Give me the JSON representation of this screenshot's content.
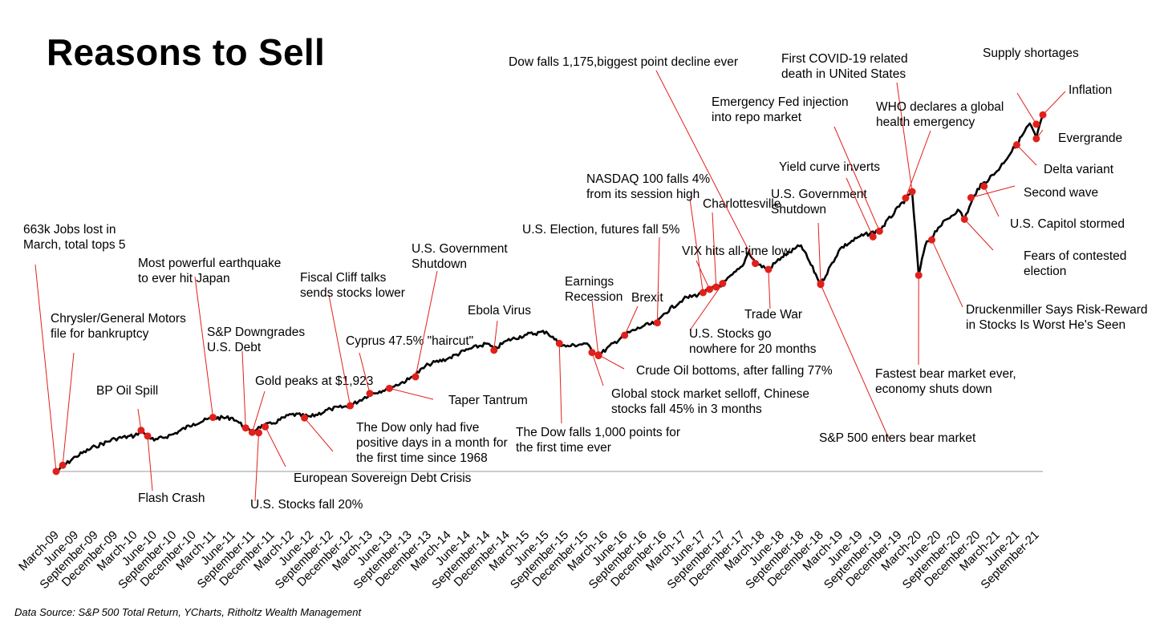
{
  "title": "Reasons to Sell",
  "source": "Data Source: S&P 500 Total Return, YCharts, Ritholtz Wealth Management",
  "colors": {
    "line": "#000000",
    "marker": "#e0201b",
    "leader": "#e0201b",
    "baseline": "#9a9a9a"
  },
  "chart_data": {
    "type": "line",
    "title": "Reasons to Sell",
    "xlabel": "",
    "ylabel": "",
    "grid": false,
    "x_ticks": [
      "March-09",
      "June-09",
      "September-09",
      "December-09",
      "March-10",
      "June-10",
      "September-10",
      "December-10",
      "March-11",
      "June-11",
      "September-11",
      "December-11",
      "March-12",
      "June-12",
      "September-12",
      "December-12",
      "March-13",
      "June-13",
      "September-13",
      "December-13",
      "March-14",
      "June-14",
      "September-14",
      "December-14",
      "March-15",
      "June-15",
      "September-15",
      "December-15",
      "March-16",
      "June-16",
      "September-16",
      "December-16",
      "March-17",
      "June-17",
      "September-17",
      "December-17",
      "March-18",
      "June-18",
      "September-18",
      "December-18",
      "March-19",
      "June-19",
      "September-19",
      "December-19",
      "March-20",
      "June-20",
      "September-20",
      "December-20",
      "March-21",
      "June-21",
      "September-21"
    ],
    "series": [
      {
        "name": "",
        "x": [
          "2009-03",
          "2009-06",
          "2009-09",
          "2009-12",
          "2010-03",
          "2010-04",
          "2010-05",
          "2010-06",
          "2010-09",
          "2010-12",
          "2011-03",
          "2011-06",
          "2011-07",
          "2011-08",
          "2011-09",
          "2011-10",
          "2011-12",
          "2012-03",
          "2012-06",
          "2012-09",
          "2012-12",
          "2013-03",
          "2013-06",
          "2013-09",
          "2013-12",
          "2014-03",
          "2014-06",
          "2014-09",
          "2014-10",
          "2014-12",
          "2015-03",
          "2015-06",
          "2015-08",
          "2015-09",
          "2015-12",
          "2016-02",
          "2016-06",
          "2016-09",
          "2016-11",
          "2016-12",
          "2017-03",
          "2017-06",
          "2017-09",
          "2017-12",
          "2018-01",
          "2018-02",
          "2018-04",
          "2018-06",
          "2018-09",
          "2018-12",
          "2019-03",
          "2019-06",
          "2019-09",
          "2019-12",
          "2020-02",
          "2020-03",
          "2020-04",
          "2020-06",
          "2020-09",
          "2020-10",
          "2020-12",
          "2021-03",
          "2021-06",
          "2021-08",
          "2021-09",
          "2021-10"
        ],
        "y": [
          0,
          0.25,
          0.42,
          0.55,
          0.6,
          0.68,
          0.6,
          0.52,
          0.63,
          0.8,
          0.9,
          0.9,
          0.82,
          0.72,
          0.64,
          0.75,
          0.8,
          0.96,
          0.92,
          1.05,
          1.1,
          1.3,
          1.4,
          1.55,
          1.8,
          1.9,
          2.05,
          2.15,
          2.05,
          2.2,
          2.3,
          2.35,
          2.15,
          2.1,
          2.15,
          1.95,
          2.3,
          2.45,
          2.5,
          2.65,
          2.9,
          3.0,
          3.15,
          3.45,
          3.7,
          3.5,
          3.4,
          3.6,
          3.8,
          3.15,
          3.75,
          3.95,
          4.05,
          4.45,
          4.7,
          3.3,
          3.8,
          4.1,
          4.4,
          4.25,
          4.75,
          5.05,
          5.5,
          5.85,
          5.6,
          6.0
        ]
      }
    ],
    "ylim": [
      0,
      6.2
    ],
    "annotations": [
      {
        "text": "663k Jobs lost in\nMarch, total tops 5",
        "x": "2009-03",
        "y": 0
      },
      {
        "text": "Chrysler/General Motors\nfile for bankruptcy",
        "x": "2009-04",
        "y": 0.1
      },
      {
        "text": "BP Oil Spill",
        "x": "2010-04",
        "y": 0.68
      },
      {
        "text": "Flash Crash",
        "x": "2010-05",
        "y": 0.6
      },
      {
        "text": "Most powerful earthquake\nto ever hit Japan",
        "x": "2011-03",
        "y": 0.9
      },
      {
        "text": "S&P Downgrades\nU.S. Debt",
        "x": "2011-08",
        "y": 0.72
      },
      {
        "text": "U.S. Stocks fall 20%",
        "x": "2011-10",
        "y": 0.64
      },
      {
        "text": "European Sovereign Debt Crisis",
        "x": "2011-11",
        "y": 0.74
      },
      {
        "text": "Gold peaks at $1,923",
        "x": "2011-09",
        "y": 0.66
      },
      {
        "text": "Fiscal Cliff talks\nsends stocks lower",
        "x": "2012-12",
        "y": 1.1
      },
      {
        "text": "The Dow only had five\npositive days in a month for\nthe first time since 1968",
        "x": "2012-05",
        "y": 0.9
      },
      {
        "text": "Cyprus 47.5% \"haircut\"",
        "x": "2013-03",
        "y": 1.3
      },
      {
        "text": "Taper Tantrum",
        "x": "2013-06",
        "y": 1.4
      },
      {
        "text": "U.S. Government\nShutdown",
        "x": "2013-10",
        "y": 1.6
      },
      {
        "text": "Ebola Virus",
        "x": "2014-10",
        "y": 2.05
      },
      {
        "text": "The Dow falls 1,000 points for\nthe first time ever",
        "x": "2015-08",
        "y": 2.15
      },
      {
        "text": "Global stock market selloff, Chinese\nstocks fall 45% in 3 months",
        "x": "2016-01",
        "y": 2.0
      },
      {
        "text": "Earnings\nRecession",
        "x": "2016-02",
        "y": 1.95
      },
      {
        "text": "Crude Oil bottoms, after falling 77%",
        "x": "2016-02",
        "y": 1.95
      },
      {
        "text": "Brexit",
        "x": "2016-06",
        "y": 2.3
      },
      {
        "text": "U.S. Election, futures fall 5%",
        "x": "2016-11",
        "y": 2.5
      },
      {
        "text": "NASDAQ 100 falls 4%\nfrom its  session high",
        "x": "2017-06",
        "y": 3.0
      },
      {
        "text": "Charlottesville",
        "x": "2017-08",
        "y": 3.1
      },
      {
        "text": "VIX hits all-time low",
        "x": "2017-07",
        "y": 3.05
      },
      {
        "text": "U.S. Stocks go\nnowhere for 20 months",
        "x": "2017-09",
        "y": 3.15
      },
      {
        "text": "Dow falls 1,175,biggest point decline ever",
        "x": "2018-02",
        "y": 3.5
      },
      {
        "text": "Trade War",
        "x": "2018-04",
        "y": 3.4
      },
      {
        "text": "U.S. Government\nShutdown",
        "x": "2018-12",
        "y": 3.15
      },
      {
        "text": "S&P 500 enters bear market",
        "x": "2018-12",
        "y": 3.15
      },
      {
        "text": "Yield curve inverts",
        "x": "2019-08",
        "y": 3.95
      },
      {
        "text": "Emergency Fed injection\ninto repo market",
        "x": "2019-09",
        "y": 4.05
      },
      {
        "text": "First COVID-19 related\ndeath in UNited States",
        "x": "2020-02",
        "y": 4.7
      },
      {
        "text": "WHO declares a global\nhealth emergency",
        "x": "2020-01",
        "y": 4.6
      },
      {
        "text": "Fastest bear market ever,\neconomy shuts down",
        "x": "2020-03",
        "y": 3.3
      },
      {
        "text": "Druckenmiller Says Risk-Reward\nin Stocks Is Worst He's Seen",
        "x": "2020-05",
        "y": 3.9
      },
      {
        "text": "Fears of contested\nelection",
        "x": "2020-10",
        "y": 4.25
      },
      {
        "text": "U.S. Capitol stormed",
        "x": "2021-01",
        "y": 4.8
      },
      {
        "text": "Second wave",
        "x": "2020-11",
        "y": 4.6
      },
      {
        "text": "Delta variant",
        "x": "2021-06",
        "y": 5.5
      },
      {
        "text": "Evergrande",
        "x": "2021-09",
        "y": 5.6
      },
      {
        "text": "Inflation",
        "x": "2021-10",
        "y": 6.0
      },
      {
        "text": "Supply shortages",
        "x": "2021-09",
        "y": 5.85
      }
    ]
  }
}
